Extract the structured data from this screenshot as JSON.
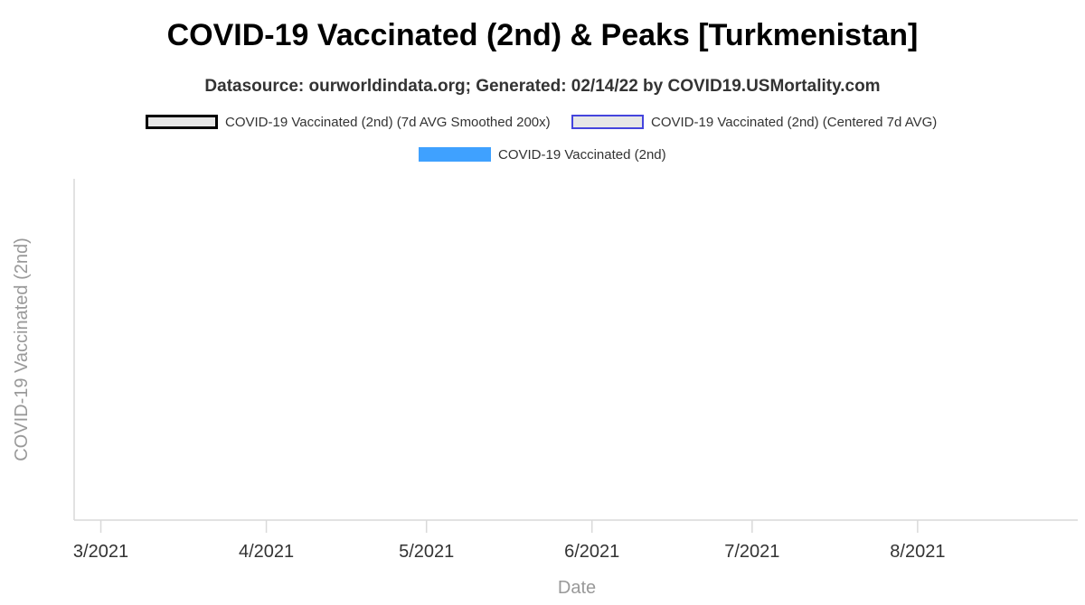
{
  "chart_data": {
    "type": "line",
    "title": "COVID-19 Vaccinated (2nd) & Peaks [Turkmenistan]",
    "subtitle": "Datasource: ourworldindata.org; Generated: 02/14/22 by COVID19.USMortality.com",
    "xlabel": "Date",
    "ylabel": "COVID-19 Vaccinated (2nd)",
    "x_tick_labels": [
      "3/2021",
      "4/2021",
      "5/2021",
      "6/2021",
      "7/2021",
      "8/2021"
    ],
    "x_tick_dates": [
      "2021-03-01",
      "2021-04-01",
      "2021-05-01",
      "2021-06-01",
      "2021-07-01",
      "2021-08-01"
    ],
    "xlim": [
      "2021-02-24",
      "2021-08-31"
    ],
    "grid": false,
    "legend_placement": "top-center",
    "series": [
      {
        "name": "COVID-19 Vaccinated (2nd) (7d AVG Smoothed 200x)",
        "type": "line",
        "color": "#000000",
        "fill": "#e6e6e6",
        "values": []
      },
      {
        "name": "COVID-19 Vaccinated (2nd) (Centered 7d AVG)",
        "type": "line",
        "color": "#4444dd",
        "fill": "#e6e6e6",
        "values": []
      },
      {
        "name": "COVID-19 Vaccinated (2nd)",
        "type": "bar",
        "color": "#3fa1ff",
        "values": []
      }
    ]
  }
}
